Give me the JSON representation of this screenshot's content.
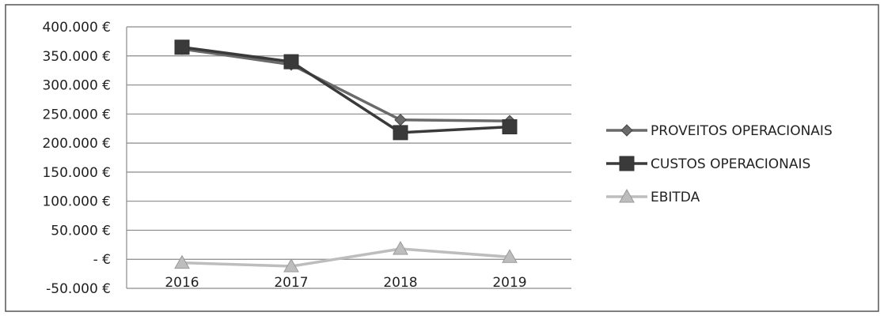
{
  "chart_data": {
    "type": "line",
    "categories": [
      "2016",
      "2017",
      "2018",
      "2019"
    ],
    "series": [
      {
        "name": "PROVEITOS OPERACIONAIS",
        "values": [
          362000,
          335000,
          240000,
          238000
        ],
        "color": "#6a6a6a",
        "marker": "diamond"
      },
      {
        "name": "CUSTOS OPERACIONAIS",
        "values": [
          365000,
          340000,
          218000,
          228000
        ],
        "color": "#3a3a3a",
        "marker": "square"
      },
      {
        "name": "EBITDA",
        "values": [
          -6000,
          -12000,
          18000,
          4000
        ],
        "color": "#bdbdbd",
        "marker": "triangle"
      }
    ],
    "y_ticks": [
      "400.000 €",
      "350.000 €",
      "300.000 €",
      "250.000 €",
      "200.000 €",
      "150.000 €",
      "100.000 €",
      "50.000 €",
      "- €",
      "-50.000 €"
    ],
    "ylim": [
      -50000,
      400000
    ],
    "grid": true,
    "legend_position": "right"
  }
}
